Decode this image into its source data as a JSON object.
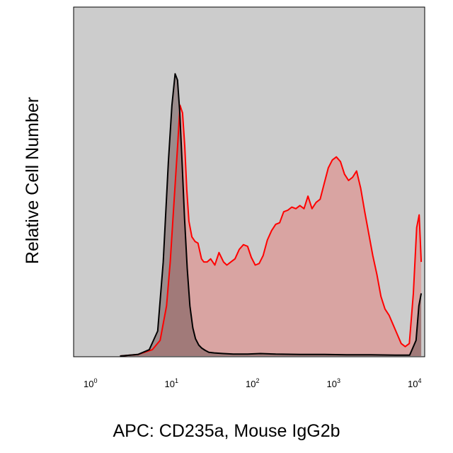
{
  "chart_data": {
    "type": "area",
    "title": "",
    "xlabel": "APC: CD235a, Mouse IgG2b",
    "ylabel": "Relative Cell Number",
    "x_scale": "log",
    "xlim": [
      1,
      10000
    ],
    "ylim": [
      0,
      1
    ],
    "grid": false,
    "background_color": "#cccccc",
    "x_ticks": [
      {
        "base": "10",
        "exp": "0",
        "value": 1
      },
      {
        "base": "10",
        "exp": "1",
        "value": 10
      },
      {
        "base": "10",
        "exp": "2",
        "value": 100
      },
      {
        "base": "10",
        "exp": "3",
        "value": 1000
      },
      {
        "base": "10",
        "exp": "4",
        "value": 10000
      }
    ],
    "series": [
      {
        "line_color": "#ff0000",
        "fill_color": "#e08a88",
        "fill_opacity": 0.62,
        "x": [
          2.4,
          4.0,
          6.0,
          7.5,
          9.0,
          10.0,
          11.2,
          12.4,
          13.2,
          14.2,
          15.1,
          16.0,
          17.0,
          18.5,
          20.3,
          22.0,
          24.3,
          26.0,
          28.5,
          31.5,
          35.5,
          40.0,
          45.5,
          50.0,
          56.0,
          63.0,
          71.0,
          80.0,
          90.0,
          100.0,
          112.0,
          125.0,
          140.0,
          158.0,
          178.0,
          200.0,
          224.0,
          251.0,
          282.0,
          316.0,
          355.0,
          398.0,
          447.0,
          501.0,
          562.0,
          631.0,
          708.0,
          794.0,
          891.0,
          1000.0,
          1122.0,
          1259.0,
          1413.0,
          1585.0,
          1778.0,
          1995.0,
          2239.0,
          2512.0,
          2818.0,
          3162.0,
          3548.0,
          3981.0,
          4467.0,
          5012.0,
          5623.0,
          6310.0,
          7079.0,
          7943.0,
          8913.0,
          10000.0,
          11000.0,
          11800.0,
          12500.0
        ],
        "y": [
          0.0,
          0.005,
          0.02,
          0.05,
          0.16,
          0.3,
          0.5,
          0.68,
          0.8,
          0.775,
          0.67,
          0.53,
          0.43,
          0.38,
          0.365,
          0.36,
          0.31,
          0.3,
          0.3,
          0.31,
          0.29,
          0.33,
          0.3,
          0.29,
          0.3,
          0.31,
          0.34,
          0.355,
          0.35,
          0.315,
          0.29,
          0.295,
          0.32,
          0.37,
          0.4,
          0.42,
          0.425,
          0.46,
          0.465,
          0.475,
          0.47,
          0.48,
          0.47,
          0.51,
          0.47,
          0.49,
          0.5,
          0.55,
          0.6,
          0.625,
          0.635,
          0.62,
          0.58,
          0.56,
          0.57,
          0.59,
          0.535,
          0.46,
          0.39,
          0.32,
          0.26,
          0.19,
          0.15,
          0.13,
          0.1,
          0.07,
          0.04,
          0.03,
          0.04,
          0.2,
          0.41,
          0.45,
          0.3
        ]
      },
      {
        "line_color": "#000000",
        "fill_color": "#735858",
        "fill_opacity": 0.55,
        "x": [
          2.4,
          4.0,
          5.5,
          7.0,
          8.2,
          9.5,
          10.5,
          11.5,
          12.3,
          13.1,
          14.0,
          15.0,
          16.2,
          17.5,
          19.0,
          20.5,
          22.5,
          24.5,
          27.0,
          30.0,
          35.0,
          45.0,
          60.0,
          90.0,
          130.0,
          200.0,
          400.0,
          800.0,
          1500.0,
          3000.0,
          6000.0,
          9000.0,
          10800.0,
          11700.0,
          12500.0
        ],
        "y": [
          0.0,
          0.005,
          0.02,
          0.08,
          0.3,
          0.62,
          0.8,
          0.9,
          0.88,
          0.78,
          0.62,
          0.44,
          0.28,
          0.16,
          0.09,
          0.055,
          0.035,
          0.025,
          0.018,
          0.012,
          0.01,
          0.008,
          0.006,
          0.006,
          0.008,
          0.006,
          0.005,
          0.005,
          0.004,
          0.004,
          0.003,
          0.003,
          0.05,
          0.16,
          0.2
        ]
      }
    ]
  }
}
